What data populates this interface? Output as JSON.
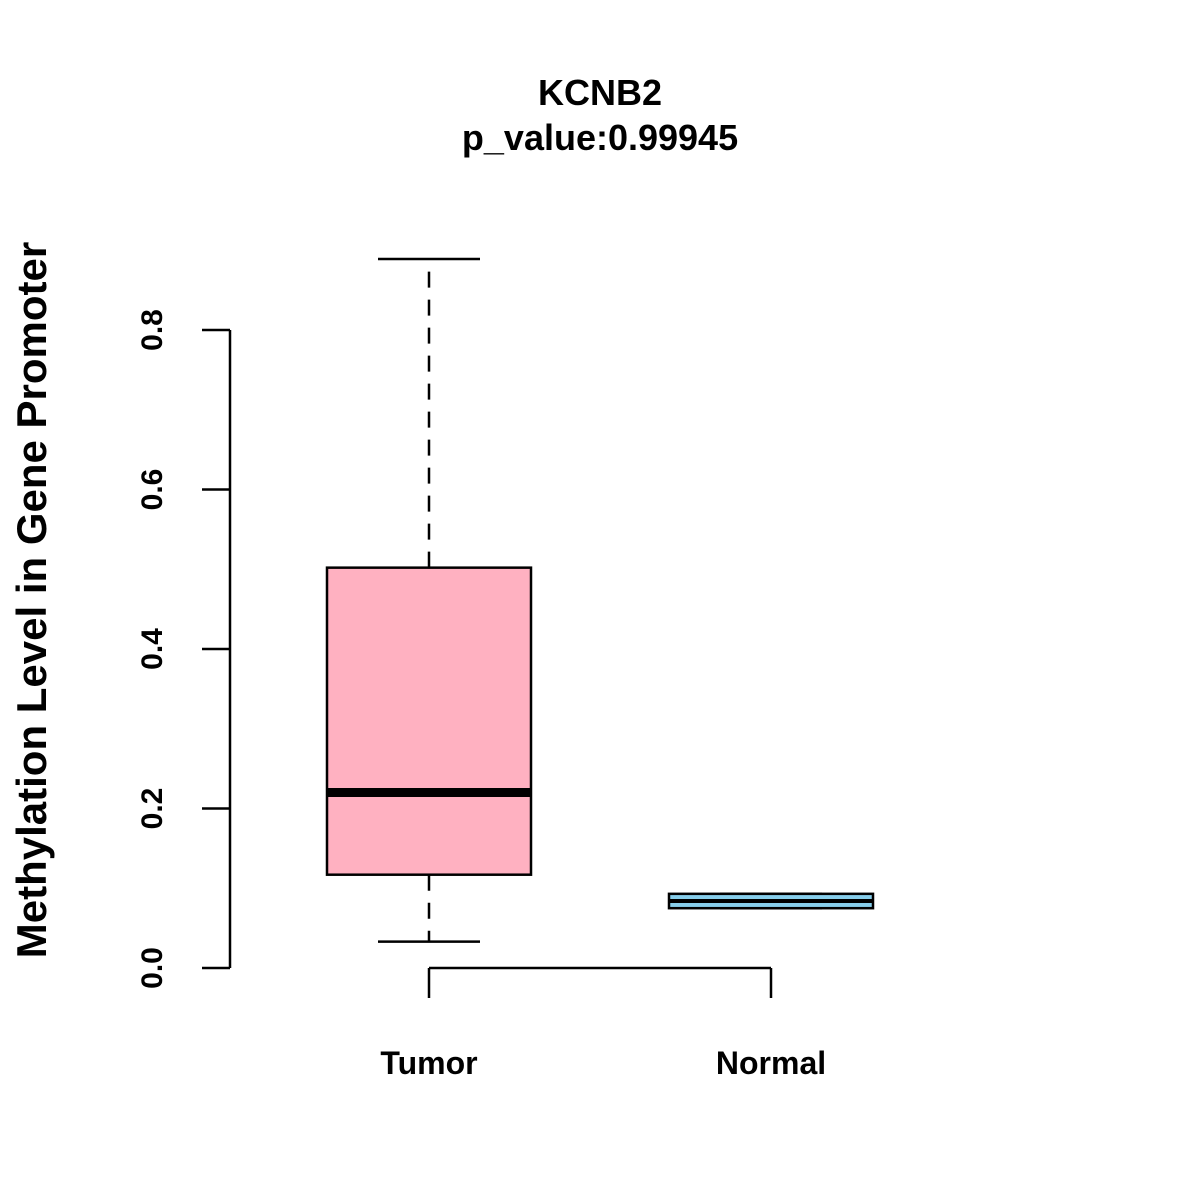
{
  "chart_data": {
    "type": "boxplot",
    "title": "KCNB2",
    "subtitle": "p_value:0.99945",
    "ylabel": "Methylation Level in Gene Promoter",
    "xlabel": "",
    "ylim": [
      0.0,
      0.8
    ],
    "yticks": [
      {
        "value": 0.0,
        "label": "0.0"
      },
      {
        "value": 0.2,
        "label": "0.2"
      },
      {
        "value": 0.4,
        "label": "0.4"
      },
      {
        "value": 0.6,
        "label": "0.6"
      },
      {
        "value": 0.8,
        "label": "0.8"
      }
    ],
    "categories": [
      "Tumor",
      "Normal"
    ],
    "boxes": [
      {
        "name": "Tumor",
        "color": "#ffb1c1",
        "whisker_low": 0.033,
        "q1": 0.117,
        "median": 0.22,
        "q3": 0.502,
        "whisker_high": 0.889
      },
      {
        "name": "Normal",
        "color": "#87ceeb",
        "whisker_low": 0.075,
        "q1": 0.075,
        "median": 0.084,
        "q3": 0.093,
        "whisker_high": 0.093
      }
    ]
  }
}
